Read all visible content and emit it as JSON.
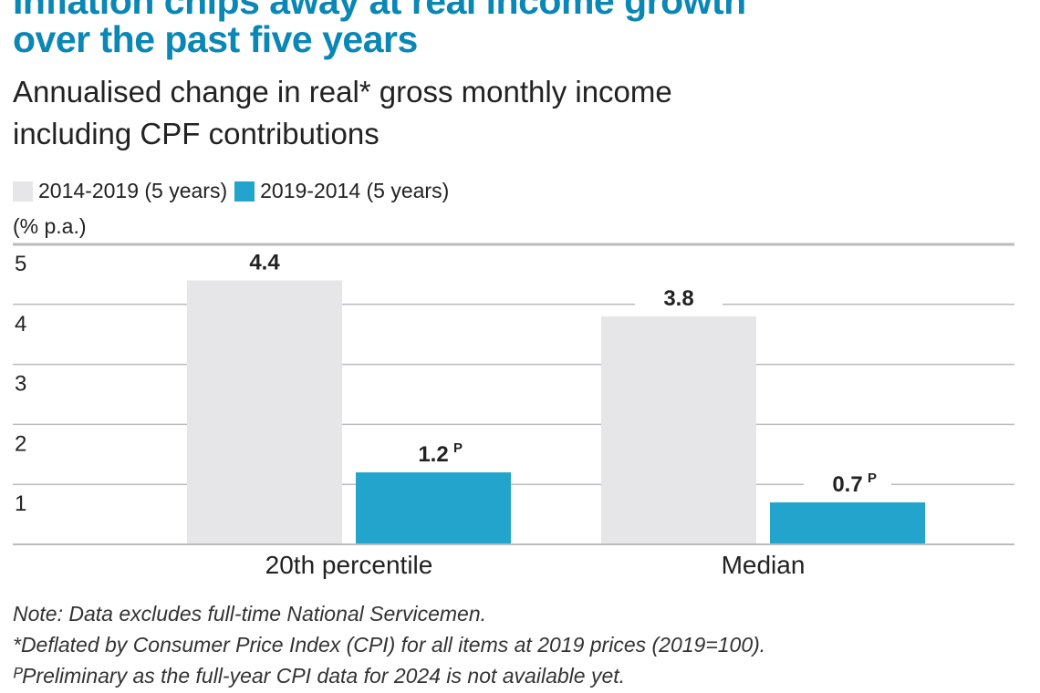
{
  "title_lines": [
    "Inflation chips away at real income growth",
    "over the past five years"
  ],
  "subtitle_lines": [
    "Annualised change in real* gross monthly income",
    "including CPF contributions"
  ],
  "notes": [
    "Note: Data excludes full-time National Servicemen.",
    "*Deflated by Consumer Price Index (CPI) for all items at 2019 prices (2019=100).",
    "ᴾPreliminary as the full-year CPI data for 2024 is not available yet."
  ],
  "chart_data": {
    "type": "bar",
    "ylabel": "(% p.a.)",
    "ylim": [
      0,
      5
    ],
    "yticks": [
      1,
      2,
      3,
      4,
      5
    ],
    "grid": true,
    "legend_placement": "top-left",
    "categories": [
      "20th percentile",
      "Median"
    ],
    "series": [
      {
        "name": "2014-2019 (5 years)",
        "color": "#e6e6e8",
        "values": [
          4.4,
          3.8
        ],
        "labels": [
          "4.4",
          "3.8"
        ],
        "suffix": [
          "",
          ""
        ]
      },
      {
        "name": "2019-2014 (5 years)",
        "color": "#22a4cc",
        "values": [
          1.2,
          0.7
        ],
        "labels": [
          "1.2",
          "0.7"
        ],
        "suffix": [
          "P",
          "P"
        ]
      }
    ]
  }
}
